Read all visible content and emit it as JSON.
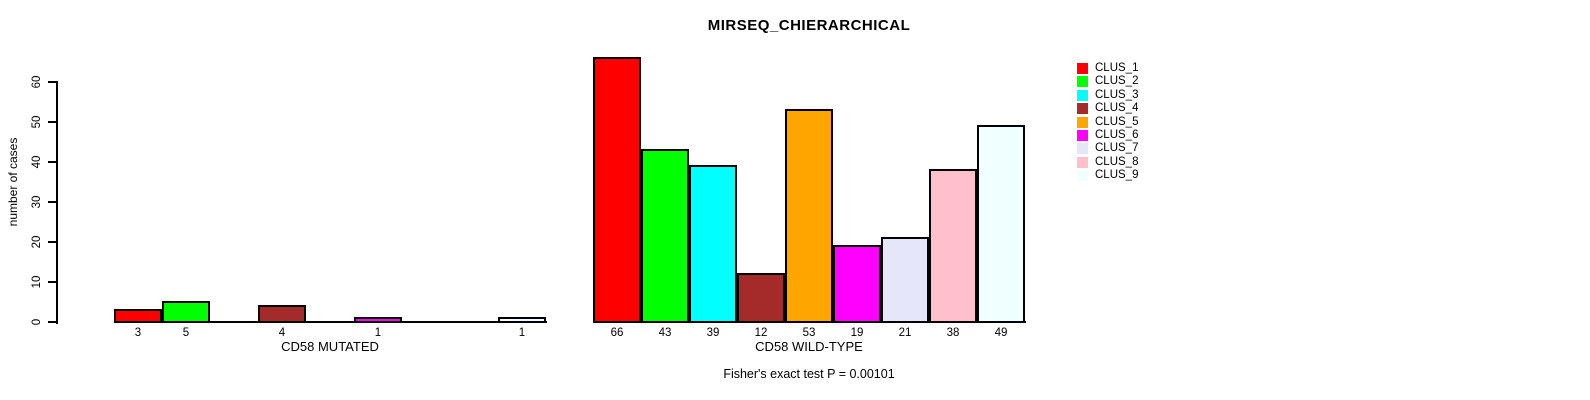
{
  "chart_data": {
    "type": "bar",
    "title": "MIRSEQ_CHIERARCHICAL",
    "ylabel": "number of cases",
    "ylim": [
      0,
      60
    ],
    "yticks": [
      0,
      10,
      20,
      30,
      40,
      50,
      60
    ],
    "grid": false,
    "legend_position": "right-inside",
    "bar_border_color": "#000000",
    "axis_color": "#000000",
    "clusters": [
      {
        "name": "CLUS_1",
        "color": "#FF0000"
      },
      {
        "name": "CLUS_2",
        "color": "#00FF00"
      },
      {
        "name": "CLUS_3",
        "color": "#00FFFF"
      },
      {
        "name": "CLUS_4",
        "color": "#A52A2A"
      },
      {
        "name": "CLUS_5",
        "color": "#FFA500"
      },
      {
        "name": "CLUS_6",
        "color": "#FF00FF"
      },
      {
        "name": "CLUS_7",
        "color": "#E6E6FA"
      },
      {
        "name": "CLUS_8",
        "color": "#FFC0CB"
      },
      {
        "name": "CLUS_9",
        "color": "#F0FFFF"
      }
    ],
    "groups": [
      {
        "label": "CD58 MUTATED",
        "values": [
          3,
          5,
          0,
          4,
          0,
          1,
          0,
          0,
          1
        ]
      },
      {
        "label": "CD58 WILD-TYPE",
        "values": [
          66,
          43,
          39,
          12,
          53,
          19,
          21,
          38,
          49
        ]
      }
    ],
    "annotation": "Fisher's exact test P = 0.00101"
  }
}
